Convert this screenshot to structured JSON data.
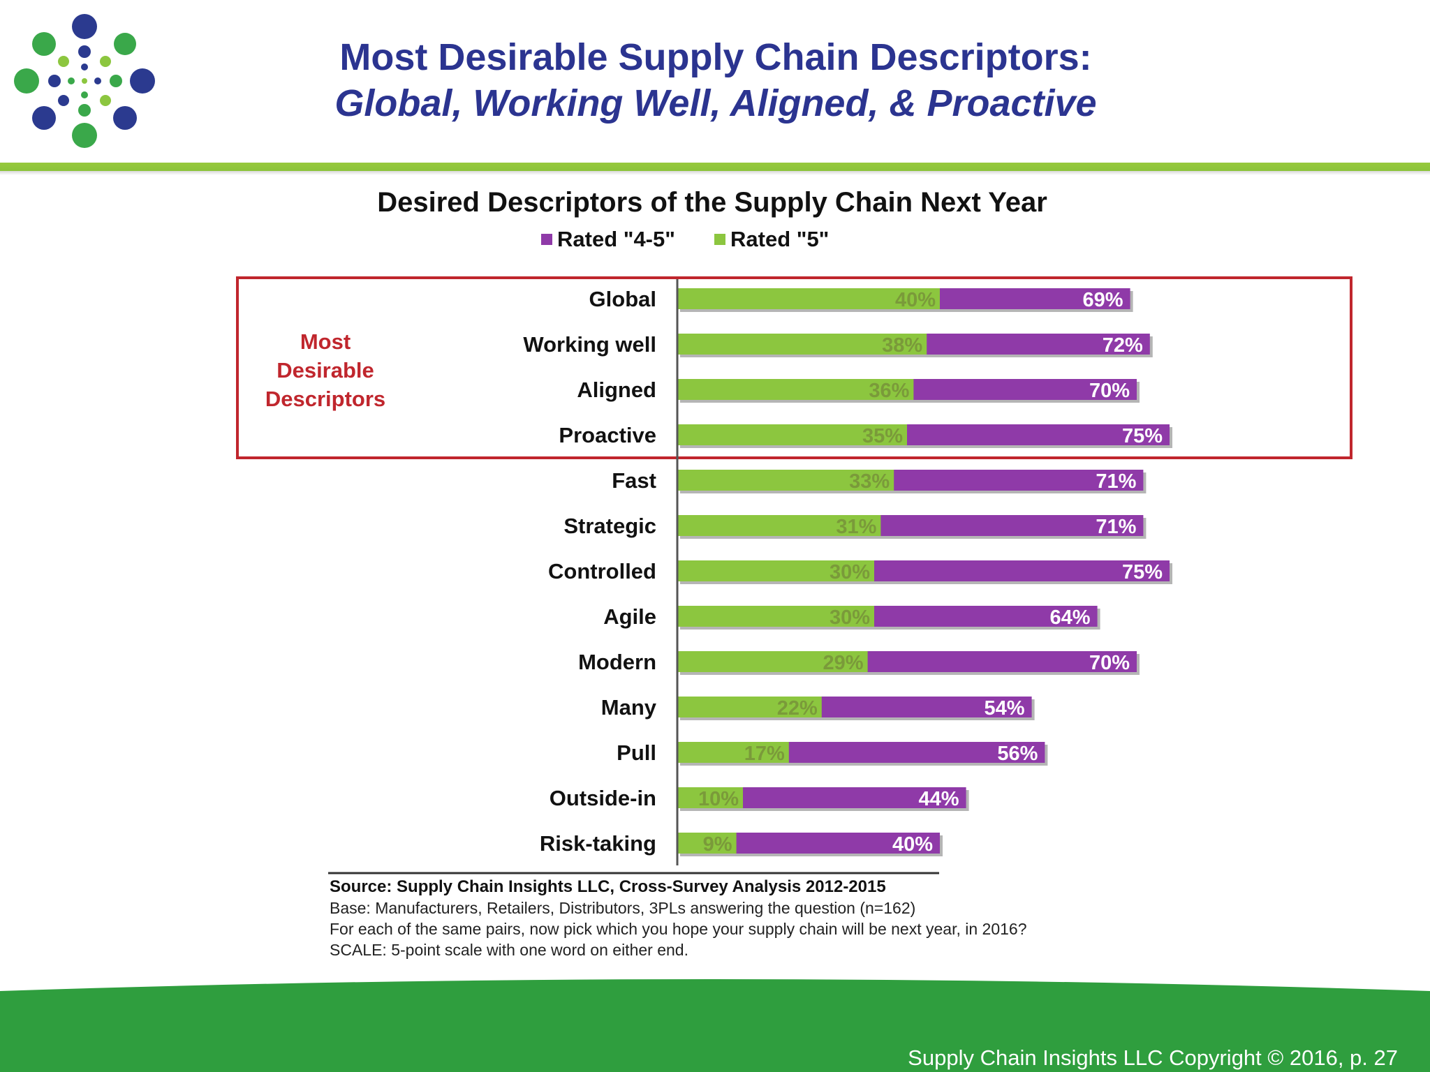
{
  "header": {
    "title_line1": "Most Desirable Supply Chain Descriptors:",
    "title_line2": "Global, Working Well, Aligned, & Proactive"
  },
  "colors": {
    "title": "#2b3490",
    "rated_4_5": "#8f3aa8",
    "rated_5": "#8cc63f",
    "highlight_box": "#c0262d",
    "footer_green": "#2f9e3e"
  },
  "chart_data": {
    "type": "bar",
    "orientation": "horizontal",
    "title": "Desired Descriptors of the Supply Chain Next Year",
    "legend": [
      "Rated \"4-5\"",
      "Rated \"5\""
    ],
    "legend_placement": "top",
    "categories": [
      "Global",
      "Working well",
      "Aligned",
      "Proactive",
      "Fast",
      "Strategic",
      "Controlled",
      "Agile",
      "Modern",
      "Many",
      "Pull",
      "Outside-in",
      "Risk-taking"
    ],
    "series": [
      {
        "name": "Rated \"4-5\"",
        "values": [
          69,
          72,
          70,
          75,
          71,
          71,
          75,
          64,
          70,
          54,
          56,
          44,
          40
        ]
      },
      {
        "name": "Rated \"5\"",
        "values": [
          40,
          38,
          36,
          35,
          33,
          31,
          30,
          30,
          29,
          22,
          17,
          10,
          9
        ]
      }
    ],
    "value_suffix": "%",
    "xlim": [
      0,
      80
    ],
    "grid": false,
    "highlight": {
      "label_line1": "Most",
      "label_line2": "Desirable",
      "label_line3": "Descriptors",
      "categories": [
        "Global",
        "Working well",
        "Aligned",
        "Proactive"
      ]
    }
  },
  "notes": {
    "source": "Source:  Supply Chain Insights LLC, Cross-Survey Analysis 2012-2015",
    "base": "Base:  Manufacturers,  Retailers, Distributors, 3PLs answering the question (n=162)",
    "question": "For each of the same pairs, now pick which  you hope your supply chain will be next year,  in 2016?",
    "scale": "SCALE: 5-point scale with  one word on either end."
  },
  "footer": {
    "copyright": "Supply Chain Insights LLC Copyright © 2016, p. 27"
  }
}
